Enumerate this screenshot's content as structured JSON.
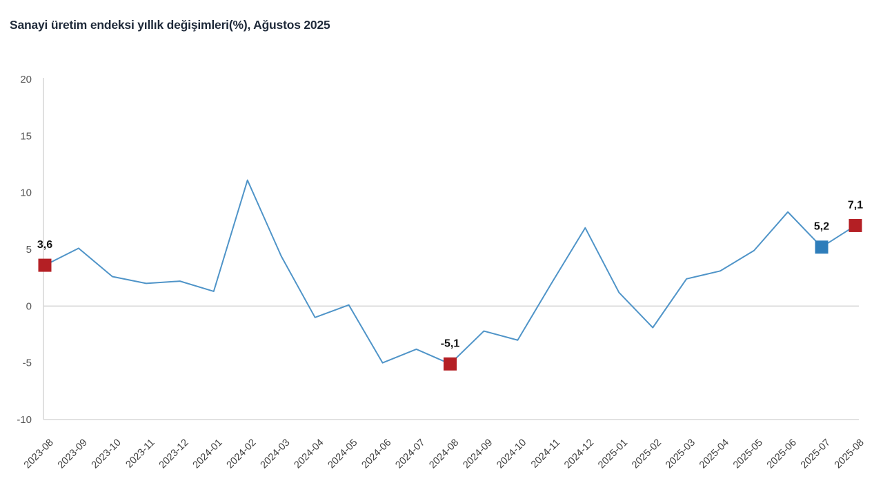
{
  "page": {
    "background": "#ffffff"
  },
  "chart_data": {
    "type": "line",
    "title": "Sanayi üretim endeksi yıllık değişimleri(%), Ağustos 2025",
    "xlabel": "",
    "ylabel": "",
    "ylim": [
      -10,
      20
    ],
    "yticks": [
      20,
      15,
      10,
      5,
      0,
      -5,
      -10
    ],
    "grid": "zero-line-only",
    "legend_position": "none",
    "line_color": "#4f94c8",
    "axis_line_color": "#d8d8d8",
    "x": [
      "2023-08",
      "2023-09",
      "2023-10",
      "2023-11",
      "2023-12",
      "2024-01",
      "2024-02",
      "2024-03",
      "2024-04",
      "2024-05",
      "2024-06",
      "2024-07",
      "2024-08",
      "2024-09",
      "2024-10",
      "2024-11",
      "2024-12",
      "2025-01",
      "2025-02",
      "2025-03",
      "2025-04",
      "2025-05",
      "2025-06",
      "2025-07",
      "2025-08"
    ],
    "values": [
      3.6,
      5.1,
      2.6,
      2.0,
      2.2,
      1.3,
      11.1,
      4.4,
      -1.0,
      0.1,
      -5.0,
      -3.8,
      -5.1,
      -2.2,
      -3.0,
      2.0,
      6.9,
      1.2,
      -1.9,
      2.4,
      3.1,
      4.9,
      8.3,
      5.2,
      7.1
    ],
    "annotations": [
      {
        "x": "2023-08",
        "value": 3.6,
        "label": "3,6",
        "marker": "square",
        "marker_color": "#b41f24"
      },
      {
        "x": "2024-08",
        "value": -5.1,
        "label": "-5,1",
        "marker": "square",
        "marker_color": "#b41f24"
      },
      {
        "x": "2025-07",
        "value": 5.2,
        "label": "5,2",
        "marker": "square",
        "marker_color": "#2e7dba"
      },
      {
        "x": "2025-08",
        "value": 7.1,
        "label": "7,1",
        "marker": "square",
        "marker_color": "#b41f24"
      }
    ]
  }
}
